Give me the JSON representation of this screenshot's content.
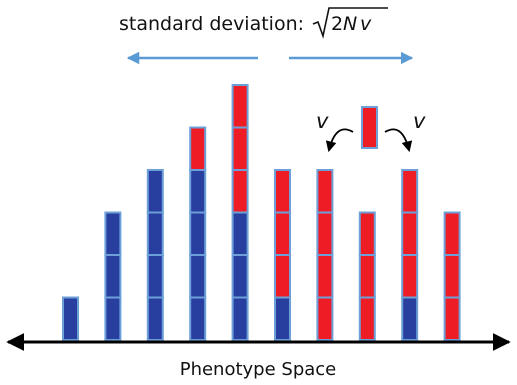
{
  "title": {
    "prefix": "standard deviation:",
    "formula_coefficient": "2",
    "formula_N": "N",
    "formula_v": "v"
  },
  "colors": {
    "blue": "#283f9f",
    "red": "#ee1c24",
    "cell_border": "#6da0d8",
    "arrow_blue": "#5b9bd5",
    "axis": "#000000"
  },
  "columns": [
    {
      "blue": 1,
      "red": 0
    },
    {
      "blue": 3,
      "red": 0
    },
    {
      "blue": 4,
      "red": 0
    },
    {
      "blue": 4,
      "red": 1
    },
    {
      "blue": 3,
      "red": 3
    },
    {
      "blue": 1,
      "red": 3
    },
    {
      "blue": 0,
      "red": 4
    },
    {
      "blue": 0,
      "red": 3
    },
    {
      "blue": 1,
      "red": 3
    },
    {
      "blue": 0,
      "red": 3
    }
  ],
  "mutation": {
    "rate_label_left": "v",
    "rate_label_right": "v"
  },
  "x_axis_label": "Phenotype Space"
}
